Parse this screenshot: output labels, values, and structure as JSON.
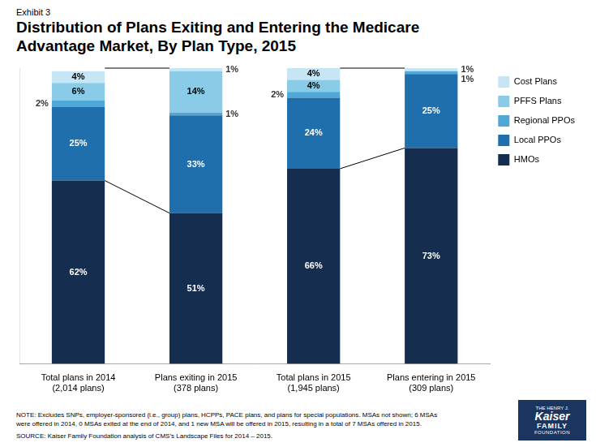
{
  "chart_data": {
    "type": "bar",
    "stacked": true,
    "title": "Distribution of Plans Exiting and Entering the Medicare\nAdvantage Market, By Plan Type, 2015",
    "annotations": [
      "Exhibit 3",
      "NOTE:  Excludes SNPs, employer-sponsored (i.e., group) plans, HCPPs, PACE plans, and plans for special populations.  MSAs not shown; 6 MSAs\nwere offered in 2014, 0 MSAs exited at the end of 2014, and 1 new MSA will be offered in 2015, resulting in a total of 7 MSAs offered in 2015.",
      "SOURCE:  Kaiser Family Foundation analysis of CMS’s Landscape Files for 2014 – 2015.",
      "THE HENRY J.\nKaiser\nFAMILY\nFOUNDATION"
    ],
    "categories": [
      "Total plans in 2014\n(2,014 plans)",
      "Plans exiting in 2015\n(378 plans)",
      "Total plans in 2015\n(1,945 plans)",
      "Plans entering in 2015\n(309 plans)"
    ],
    "series": [
      {
        "name": "HMOs",
        "color": "#152d4e",
        "values": [
          62,
          51,
          66,
          73
        ],
        "value_labels": [
          "62%",
          "51%",
          "66%",
          "73%"
        ]
      },
      {
        "name": "Local PPOs",
        "color": "#1f6fad",
        "values": [
          25,
          33,
          24,
          25
        ],
        "value_labels": [
          "25%",
          "33%",
          "24%",
          "25%"
        ]
      },
      {
        "name": "Regional PPOs",
        "color": "#4fa8d5",
        "values": [
          2,
          1,
          2,
          1
        ],
        "value_labels": [
          "2%",
          "1%",
          "2%",
          "1%"
        ]
      },
      {
        "name": "PFFS Plans",
        "color": "#8acce8",
        "values": [
          6,
          14,
          4,
          0
        ],
        "value_labels": [
          "6%",
          "14%",
          "4%",
          null
        ]
      },
      {
        "name": "Cost Plans",
        "color": "#c6e5f5",
        "values": [
          4,
          1,
          4,
          1
        ],
        "value_labels": [
          "4%",
          "1%",
          "4%",
          "1%"
        ]
      }
    ],
    "ylim": [
      0,
      100
    ],
    "data_labels": true,
    "tick_labels": "x",
    "grid": false,
    "legend": "right"
  }
}
